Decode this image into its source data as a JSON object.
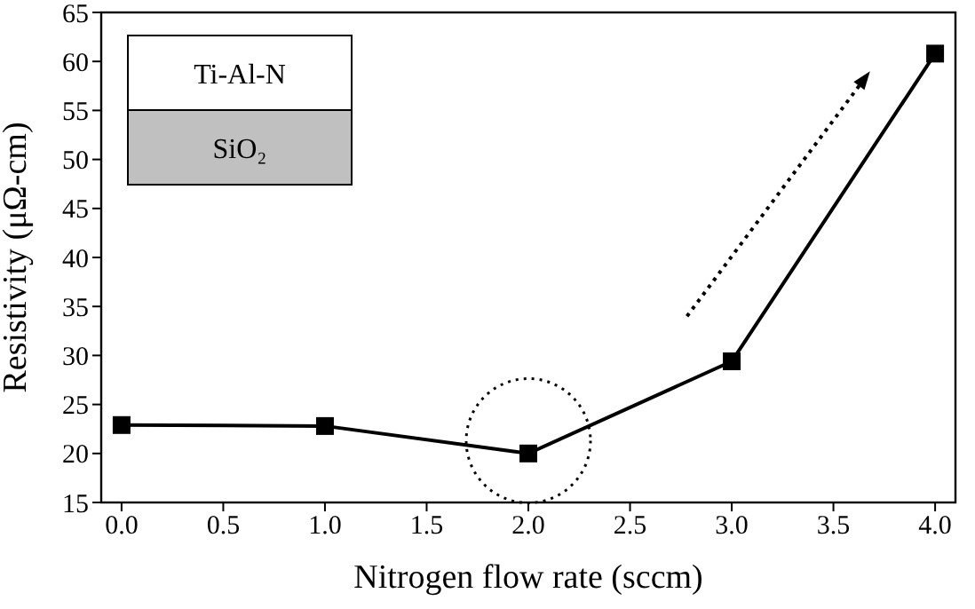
{
  "chart_data": {
    "type": "line",
    "xlabel": "Nitrogen flow rate (sccm)",
    "ylabel": "Resistivity (μΩ-cm)",
    "x": [
      0,
      1,
      2,
      3,
      4
    ],
    "series": [
      {
        "color": "#000000",
        "values": [
          22.9,
          22.8,
          20.0,
          29.4,
          60.8
        ]
      }
    ],
    "xlim": [
      -0.1,
      4.1
    ],
    "xticks": [
      {
        "value": 0,
        "label": "0.0"
      },
      {
        "value": 0.5,
        "label": "0.5"
      },
      {
        "value": 1,
        "label": "1.0"
      },
      {
        "value": 1.5,
        "label": "1.5"
      },
      {
        "value": 2,
        "label": "2.0"
      },
      {
        "value": 2.5,
        "label": "2.5"
      },
      {
        "value": 3,
        "label": "3.0"
      },
      {
        "value": 3.5,
        "label": "3.5"
      },
      {
        "value": 4,
        "label": "4.0"
      }
    ],
    "ylim": [
      15,
      65
    ],
    "yticks": [
      15,
      20,
      25,
      30,
      35,
      40,
      45,
      50,
      55,
      60,
      65
    ],
    "marker": "square",
    "line_style": "solid",
    "grid": false,
    "legend": false,
    "annotations": [
      "Ti-Al-N",
      "SiO₂"
    ]
  }
}
